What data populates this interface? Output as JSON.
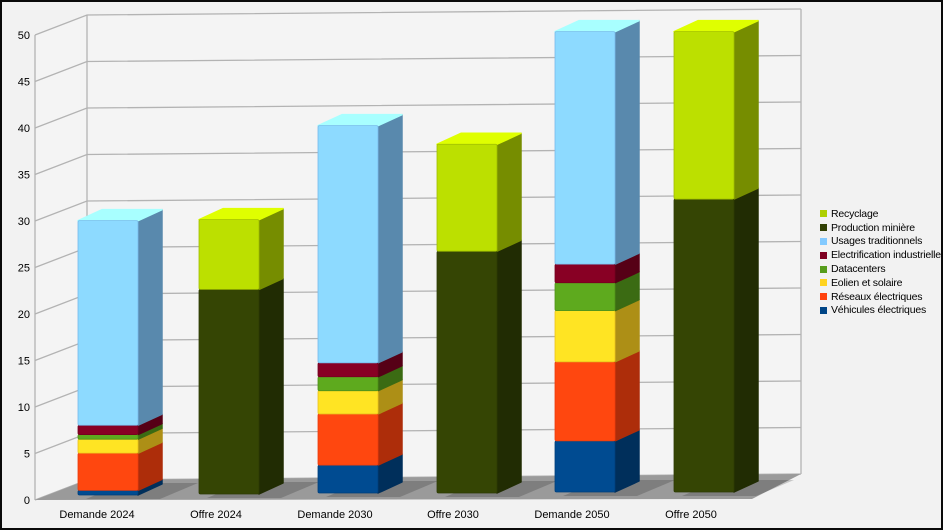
{
  "window": {
    "background_color": "#f2f2f2",
    "frame_color": "#0a0a0a"
  },
  "chart_data": {
    "type": "bar",
    "variant": "3d-stacked-bar",
    "title": "",
    "xlabel": "",
    "ylabel": "",
    "grid": true,
    "categories": [
      "Demande 2024",
      "Offre 2024",
      "Demande 2030",
      "Offre 2030",
      "Demande 2050",
      "Offre 2050"
    ],
    "series": [
      {
        "name": "Véhicules électriques",
        "color": "#004586",
        "values": [
          0.5,
          0,
          3,
          0,
          5.5,
          0
        ]
      },
      {
        "name": "Réseaux électriques",
        "color": "#FF420E",
        "values": [
          4,
          0,
          5.5,
          0,
          8.5,
          0
        ]
      },
      {
        "name": "Eolien et solaire",
        "color": "#FFD320",
        "values": [
          1.5,
          0,
          2.5,
          0,
          5.5,
          0
        ]
      },
      {
        "name": "Datacenters",
        "color": "#579D1C",
        "values": [
          0.5,
          0,
          1.5,
          0,
          3,
          0
        ]
      },
      {
        "name": "Electrification industrielle",
        "color": "#7E0021",
        "values": [
          1,
          0,
          1.5,
          0,
          2,
          0
        ]
      },
      {
        "name": "Usages traditionnels",
        "color": "#83CAFF",
        "values": [
          22,
          0,
          25.5,
          0,
          25,
          0
        ]
      },
      {
        "name": "Production minière",
        "color": "#314004",
        "values": [
          0,
          22,
          0,
          26,
          0,
          31.5
        ]
      },
      {
        "name": "Recyclage",
        "color": "#AECF00",
        "values": [
          0,
          7.5,
          0,
          11.5,
          0,
          18
        ]
      }
    ],
    "stack_totals": [
      29.5,
      29.5,
      39.5,
      37.5,
      49.5,
      49.5
    ],
    "y_axis": {
      "min": 0,
      "max": 50,
      "step": 5,
      "tick_labels": [
        "0",
        "5",
        "10",
        "15",
        "20",
        "25",
        "30",
        "35",
        "40",
        "45",
        "50"
      ]
    },
    "legend": {
      "position": "right",
      "entries": [
        {
          "label": "Recyclage",
          "color": "#AECF00"
        },
        {
          "label": "Production minière",
          "color": "#314004"
        },
        {
          "label": "Usages traditionnels",
          "color": "#83CAFF"
        },
        {
          "label": "Electrification industrielle",
          "color": "#7E0021"
        },
        {
          "label": "Datacenters",
          "color": "#579D1C"
        },
        {
          "label": "Eolien et solaire",
          "color": "#FFD320"
        },
        {
          "label": "Réseaux électriques",
          "color": "#FF420E"
        },
        {
          "label": "Véhicules électriques",
          "color": "#004586"
        }
      ]
    },
    "wall_color": "#f4f4f4",
    "floor_color": "#9a9a9a",
    "grid_color": "#b3b3b3",
    "tick_label_color": "#000000"
  }
}
